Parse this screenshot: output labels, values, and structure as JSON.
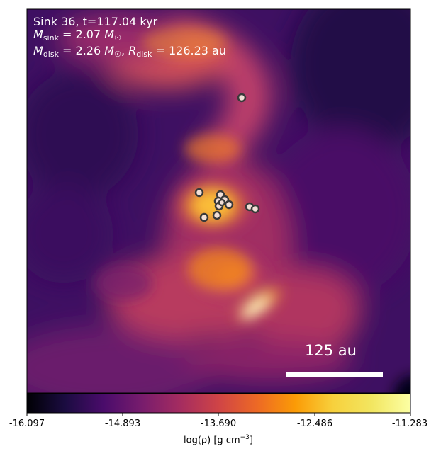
{
  "annotation": {
    "line1": "Sink 36, t=117.04 kyr",
    "m_sink_value": "2.07",
    "m_disk_value": "2.26",
    "r_disk_value": "126.23",
    "unit_msun": "M",
    "unit_au": "au",
    "sub_sink": "sink",
    "sub_disk": "disk"
  },
  "scalebar": {
    "label": "125 au"
  },
  "colorbar": {
    "label_prefix": "log(ρ) [g cm",
    "label_exp": "−3",
    "label_suffix": "]",
    "ticks": [
      "-16.097",
      "-14.893",
      "-13.690",
      "-12.486",
      "-11.283"
    ],
    "colormap": "inferno"
  },
  "sinks": {
    "count": 12,
    "fill": "#f2dfd6",
    "stroke": "#3a3a3a"
  },
  "colors": {
    "background_dark": "#2a0b4e",
    "mid_purple": "#7a1c6c",
    "orange": "#f07a2a",
    "bright": "#fcf1a4"
  }
}
